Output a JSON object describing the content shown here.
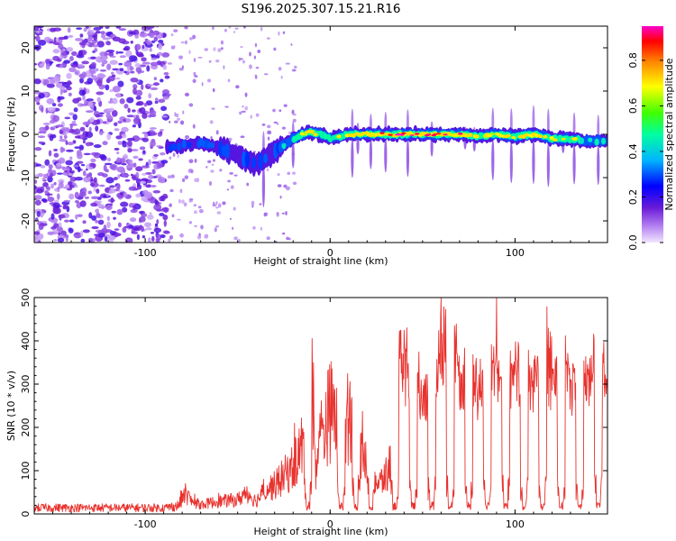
{
  "title": "S196.2025.307.15.21.R16",
  "chart_data": [
    {
      "type": "heatmap",
      "name": "spectrogram",
      "xlabel": "Height of straight line (km)",
      "ylabel": "Frequency (Hz)",
      "xlim": [
        -160,
        150
      ],
      "ylim": [
        -25,
        25
      ],
      "xticks": [
        -100,
        0,
        100
      ],
      "xtick_labels": [
        "-100",
        "0",
        "100"
      ],
      "yticks": [
        -20,
        -10,
        0,
        10,
        20
      ],
      "ytick_labels": [
        "-20",
        "-10",
        "0",
        "10",
        "20"
      ],
      "colorbar": {
        "label": "Normalized spectral amplitude",
        "range": [
          0,
          0.95
        ],
        "ticks": [
          0.0,
          0.2,
          0.4,
          0.6,
          0.8
        ],
        "tick_labels": [
          "0.0",
          "0.2",
          "0.4",
          "0.6",
          "0.8"
        ],
        "colors": [
          "#f2e6ff",
          "#8a2be2",
          "#0000ff",
          "#00bfff",
          "#00ff7f",
          "#7fff00",
          "#ffff00",
          "#ff8c00",
          "#ff0000",
          "#ff00cc"
        ]
      },
      "ridge": {
        "x": [
          -88,
          -80,
          -70,
          -60,
          -50,
          -40,
          -30,
          -20,
          -12,
          -5,
          0,
          10,
          20,
          30,
          40,
          50,
          60,
          70,
          80,
          90,
          100,
          110,
          120,
          130,
          140,
          150
        ],
        "freq": [
          -3,
          -2.5,
          -2,
          -3,
          -5,
          -7,
          -4,
          -1,
          0.5,
          0,
          -1,
          0,
          0,
          0,
          0,
          0,
          0,
          0,
          -0.5,
          0,
          -0.5,
          0,
          -1,
          -1,
          -1.5,
          -1.5
        ],
        "amplitude": [
          0.25,
          0.3,
          0.35,
          0.3,
          0.3,
          0.3,
          0.35,
          0.45,
          0.8,
          0.6,
          0.55,
          0.75,
          0.8,
          0.85,
          0.9,
          0.85,
          0.85,
          0.9,
          0.7,
          0.8,
          0.75,
          0.8,
          0.7,
          0.75,
          0.45,
          0.4
        ]
      },
      "noise_region_x": [
        -160,
        -88
      ]
    },
    {
      "type": "line",
      "name": "snr",
      "xlabel": "Height of straight line (km)",
      "ylabel": "SNR (10 * v/v)",
      "xlim": [
        -160,
        150
      ],
      "ylim": [
        0,
        500
      ],
      "xticks": [
        -100,
        0,
        100
      ],
      "xtick_labels": [
        "-100",
        "0",
        "100"
      ],
      "yticks": [
        0,
        100,
        200,
        300,
        400,
        500
      ],
      "ytick_labels": [
        "0",
        "100",
        "200",
        "300",
        "400",
        "500"
      ],
      "color": "#e8322e",
      "series": [
        {
          "name": "SNR",
          "x": [
            -160,
            -140,
            -120,
            -100,
            -90,
            -82,
            -78,
            -75,
            -70,
            -60,
            -50,
            -45,
            -40,
            -35,
            -30,
            -25,
            -20,
            -15,
            -12,
            -10,
            -8,
            -5,
            0,
            5,
            8,
            11,
            15,
            18,
            22,
            26,
            30,
            33,
            36,
            40,
            45,
            50,
            55,
            60,
            63,
            66,
            70,
            75,
            80,
            85,
            90,
            95,
            100,
            105,
            110,
            115,
            120,
            125,
            130,
            135,
            140,
            145,
            150
          ],
          "y": [
            15,
            15,
            15,
            15,
            15,
            20,
            65,
            40,
            30,
            40,
            45,
            70,
            40,
            80,
            90,
            120,
            150,
            220,
            300,
            420,
            150,
            250,
            330,
            300,
            260,
            340,
            200,
            240,
            150,
            90,
            120,
            160,
            380,
            400,
            380,
            320,
            380,
            420,
            480,
            500,
            340,
            420,
            330,
            400,
            420,
            350,
            370,
            400,
            350,
            410,
            380,
            430,
            350,
            400,
            380,
            460,
            310
          ],
          "dips_x": [
            -12,
            6,
            14,
            22,
            35,
            45,
            55,
            65,
            75,
            85,
            95,
            105,
            115,
            125,
            135,
            145
          ]
        }
      ]
    }
  ]
}
